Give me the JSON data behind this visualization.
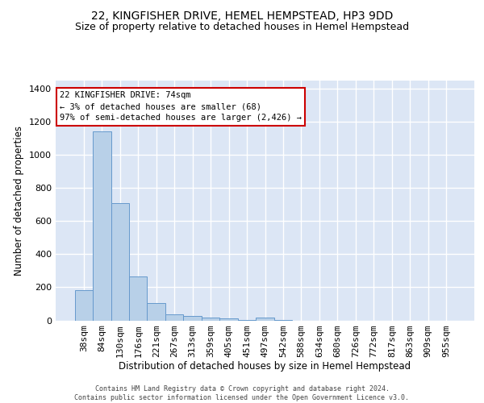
{
  "title": "22, KINGFISHER DRIVE, HEMEL HEMPSTEAD, HP3 9DD",
  "subtitle": "Size of property relative to detached houses in Hemel Hempstead",
  "xlabel": "Distribution of detached houses by size in Hemel Hempstead",
  "ylabel": "Number of detached properties",
  "bar_color": "#b8d0e8",
  "bar_edge_color": "#6699cc",
  "background_color": "#dce6f5",
  "grid_color": "#ffffff",
  "categories": [
    "38sqm",
    "84sqm",
    "130sqm",
    "176sqm",
    "221sqm",
    "267sqm",
    "313sqm",
    "359sqm",
    "405sqm",
    "451sqm",
    "497sqm",
    "542sqm",
    "588sqm",
    "634sqm",
    "680sqm",
    "726sqm",
    "772sqm",
    "817sqm",
    "863sqm",
    "909sqm",
    "955sqm"
  ],
  "values": [
    185,
    1145,
    710,
    265,
    107,
    35,
    28,
    15,
    12,
    3,
    18,
    3,
    0,
    0,
    0,
    0,
    0,
    0,
    0,
    0,
    0
  ],
  "ylim": [
    0,
    1450
  ],
  "yticks": [
    0,
    200,
    400,
    600,
    800,
    1000,
    1200,
    1400
  ],
  "annotation_text": "22 KINGFISHER DRIVE: 74sqm\n← 3% of detached houses are smaller (68)\n97% of semi-detached houses are larger (2,426) →",
  "annotation_box_color": "#ffffff",
  "annotation_box_edge_color": "#cc0000",
  "footer_text": "Contains HM Land Registry data © Crown copyright and database right 2024.\nContains public sector information licensed under the Open Government Licence v3.0.",
  "title_fontsize": 10,
  "subtitle_fontsize": 9,
  "ylabel_fontsize": 8.5,
  "xlabel_fontsize": 8.5,
  "tick_fontsize": 8,
  "annotation_fontsize": 7.5,
  "footer_fontsize": 6
}
